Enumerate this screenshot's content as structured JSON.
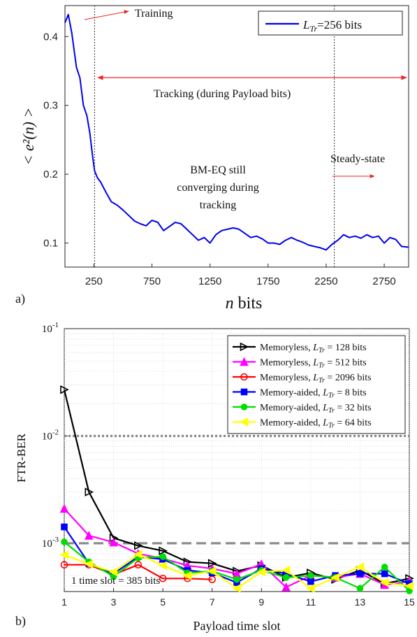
{
  "panels": {
    "a_label": "a)",
    "b_label": "b)"
  },
  "chart_data": [
    {
      "type": "line",
      "panel": "a)",
      "ylabel": "< e²(n) >",
      "xlabel_var": "n",
      "xlabel_unit": " bits",
      "xlim": [
        1,
        2960
      ],
      "ylim": [
        0.065,
        0.445
      ],
      "xticks": [
        250,
        750,
        1250,
        1750,
        2250,
        2750
      ],
      "yticks": [
        0.1,
        0.2,
        0.3,
        0.4
      ],
      "grid": false,
      "legend_position": "top-right",
      "series": [
        {
          "name": "L_Tr=256 bits",
          "legend_main": "L",
          "legend_sub": "Tr",
          "legend_rest": "=256 bits",
          "color": "#0000ee",
          "x": [
            1,
            30,
            60,
            100,
            130,
            160,
            190,
            215,
            240,
            256,
            280,
            310,
            350,
            400,
            450,
            500,
            550,
            600,
            650,
            700,
            750,
            800,
            850,
            900,
            950,
            1000,
            1050,
            1100,
            1150,
            1200,
            1250,
            1300,
            1350,
            1400,
            1450,
            1500,
            1550,
            1600,
            1650,
            1700,
            1750,
            1800,
            1850,
            1900,
            1950,
            2000,
            2050,
            2100,
            2150,
            2200,
            2250,
            2300,
            2350,
            2400,
            2450,
            2500,
            2550,
            2600,
            2650,
            2700,
            2750,
            2800,
            2850,
            2900,
            2960
          ],
          "y": [
            0.42,
            0.432,
            0.405,
            0.355,
            0.34,
            0.3,
            0.285,
            0.26,
            0.225,
            0.205,
            0.195,
            0.188,
            0.175,
            0.16,
            0.155,
            0.148,
            0.14,
            0.132,
            0.128,
            0.125,
            0.133,
            0.13,
            0.118,
            0.124,
            0.13,
            0.128,
            0.12,
            0.112,
            0.104,
            0.108,
            0.1,
            0.112,
            0.118,
            0.12,
            0.122,
            0.12,
            0.114,
            0.108,
            0.11,
            0.106,
            0.1,
            0.1,
            0.098,
            0.104,
            0.108,
            0.104,
            0.101,
            0.097,
            0.095,
            0.093,
            0.09,
            0.098,
            0.104,
            0.112,
            0.108,
            0.11,
            0.107,
            0.112,
            0.108,
            0.11,
            0.1,
            0.108,
            0.105,
            0.095,
            0.094
          ]
        }
      ],
      "vlines": [
        {
          "x": 256
        },
        {
          "x": 2320
        }
      ],
      "annotations": {
        "training": "Training",
        "tracking": "Tracking (during Payload bits)",
        "bmeq": [
          "BM-EQ still",
          "converging during",
          "tracking"
        ],
        "steady": "Steady-state"
      }
    },
    {
      "type": "line",
      "panel": "b)",
      "ylabel": "FTR-BER",
      "xlabel": "Payload time slot",
      "xlim": [
        1,
        15
      ],
      "ylim_log10": [
        -3.45,
        -1
      ],
      "yscale": "log",
      "xticks": [
        1,
        3,
        5,
        7,
        9,
        11,
        13,
        15
      ],
      "yticks_exp": [
        -3,
        -2,
        -1
      ],
      "ytick_base": "10",
      "grid": true,
      "legend_position": "top-right",
      "hlines": [
        {
          "y": 0.01,
          "style": "dotted",
          "color": "#888888"
        },
        {
          "y": 0.001,
          "style": "dashed",
          "color": "#888888"
        }
      ],
      "note": "1 time slot = 385 bits",
      "series": [
        {
          "name": "Memoryless, L_Tr = 128 bits",
          "legend_text": "Memoryless, ",
          "legend_value": " = 128 bits",
          "color": "#000000",
          "marker": "tri-right",
          "x": [
            1,
            2,
            3,
            4,
            5,
            6,
            7,
            8,
            9,
            10,
            11,
            12,
            13,
            14,
            15
          ],
          "y": [
            0.027,
            0.003,
            0.00112,
            0.00095,
            0.00085,
            0.00067,
            0.00065,
            0.00055,
            0.00062,
            0.00048,
            0.00053,
            0.00046,
            0.00056,
            0.00042,
            0.00047
          ]
        },
        {
          "name": "Memoryless, L_Tr = 512 bits",
          "legend_text": "Memoryless, ",
          "legend_value": " = 512 bits",
          "color": "#ff00ff",
          "marker": "tri-up",
          "x": [
            1,
            2,
            3,
            4,
            5,
            6,
            7,
            8,
            9,
            10,
            11,
            12,
            13,
            14,
            15
          ],
          "y": [
            0.0021,
            0.00118,
            0.00102,
            0.0008,
            0.00072,
            0.00062,
            0.00058,
            0.00052,
            0.00064,
            0.00039,
            0.0005,
            0.00048,
            0.00052,
            0.00041,
            0.00044
          ]
        },
        {
          "name": "Memoryless, L_Tr = 2096 bits",
          "legend_text": "Memoryless, ",
          "legend_value": " = 2096 bits",
          "color": "#ff0000",
          "marker": "circle",
          "x": [
            1,
            2,
            3,
            4,
            5,
            6,
            7
          ],
          "y": [
            0.00063,
            0.00063,
            0.00051,
            0.00063,
            0.00047,
            0.00047,
            0.00046
          ]
        },
        {
          "name": "Memory-aided, L_Tr = 8 bits",
          "legend_text": "Memory-aided, ",
          "legend_value": " = 8 bits",
          "color": "#0000ff",
          "marker": "square",
          "x": [
            1,
            2,
            3,
            4,
            5,
            6,
            7,
            8,
            9,
            10,
            11,
            12,
            13,
            14,
            15
          ],
          "y": [
            0.00142,
            0.00065,
            0.00052,
            0.00075,
            0.00071,
            0.00056,
            0.00053,
            0.00043,
            0.00058,
            0.00052,
            0.00044,
            0.0005,
            0.00052,
            0.00052,
            0.00042
          ]
        },
        {
          "name": "Memory-aided, L_Tr = 32 bits",
          "legend_text": "Memory-aided, ",
          "legend_value": " = 32 bits",
          "color": "#00dd00",
          "marker": "dot",
          "x": [
            1,
            2,
            3,
            4,
            5,
            6,
            7,
            8,
            9,
            10,
            11,
            12,
            13,
            14,
            15
          ],
          "y": [
            0.00103,
            0.00067,
            0.00049,
            0.00073,
            0.00075,
            0.00053,
            0.00055,
            0.00046,
            0.00056,
            0.00048,
            0.0005,
            0.00048,
            0.00038,
            0.0006,
            0.00036
          ]
        },
        {
          "name": "Memory-aided, L_Tr = 64 bits",
          "legend_text": "Memory-aided, ",
          "legend_value": " = 64 bits",
          "color": "#ffff00",
          "marker": "tri-left",
          "x": [
            1,
            2,
            3,
            4,
            5,
            6,
            7,
            8,
            9,
            10,
            11,
            12,
            13,
            14,
            15
          ],
          "y": [
            0.00078,
            0.00064,
            0.00054,
            0.00079,
            0.00062,
            0.0005,
            0.00055,
            0.00038,
            0.00054,
            0.00056,
            0.00038,
            0.00048,
            0.0006,
            0.00043,
            0.0004
          ]
        }
      ]
    }
  ]
}
